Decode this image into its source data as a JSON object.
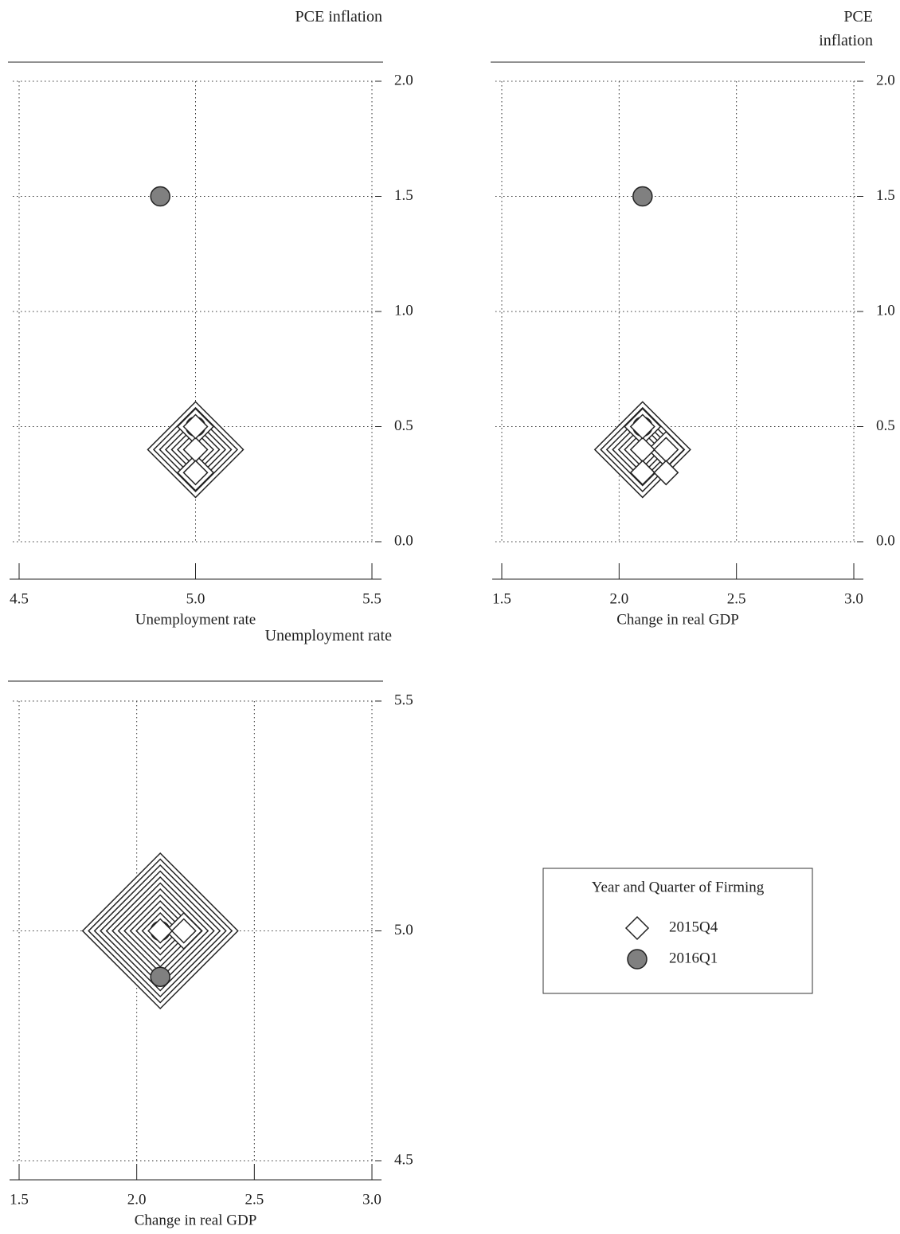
{
  "chart_data": [
    {
      "type": "scatter",
      "x_label": "Unemployment rate",
      "y_label": "PCE inflation",
      "xlim": [
        4.5,
        5.5
      ],
      "xticks": [
        4.5,
        {
          "value": 5,
          "label": "5.0"
        },
        5.5
      ],
      "ylim": [
        0,
        2
      ],
      "yticks": [
        {
          "value": 0,
          "label": "0.0"
        },
        0.5,
        {
          "value": 1,
          "label": "1.0"
        },
        1.5,
        {
          "value": 2,
          "label": "2.0"
        }
      ],
      "grid": true,
      "series": [
        {
          "name": "2015Q4",
          "marker": "diamond",
          "color": "#ffffff",
          "x": [
            5,
            5,
            5,
            5,
            5,
            5,
            5,
            5,
            5,
            5,
            5
          ],
          "y": [
            0.4,
            0.4,
            0.4,
            0.4,
            0.4,
            0.4,
            0.4,
            0.5,
            0.5,
            0.3,
            0.3
          ]
        },
        {
          "name": "2016Q1",
          "marker": "circle",
          "color": "#808080",
          "x": [
            4.9,
            5
          ],
          "y": [
            1.5,
            0.5
          ]
        }
      ]
    },
    {
      "type": "scatter",
      "x_label": "Change in real GDP",
      "y_label": "PCE inflation",
      "xlim": [
        1.5,
        3
      ],
      "xticks": [
        1.5,
        {
          "value": 2,
          "label": "2.0"
        },
        2.5,
        {
          "value": 3,
          "label": "3.0"
        }
      ],
      "ylim": [
        0,
        2
      ],
      "yticks": [
        {
          "value": 0,
          "label": "0.0"
        },
        0.5,
        {
          "value": 1,
          "label": "1.0"
        },
        1.5,
        {
          "value": 2,
          "label": "2.0"
        }
      ],
      "grid": true,
      "series": [
        {
          "name": "2015Q4",
          "marker": "diamond",
          "color": "#ffffff",
          "x": [
            2.1,
            2.1,
            2.1,
            2.1,
            2.1,
            2.1,
            2.1,
            2.1,
            2.1,
            2.2,
            2.2,
            2.1,
            2.2
          ],
          "y": [
            0.4,
            0.4,
            0.4,
            0.4,
            0.4,
            0.4,
            0.4,
            0.5,
            0.5,
            0.4,
            0.4,
            0.3,
            0.3
          ]
        },
        {
          "name": "2016Q1",
          "marker": "circle",
          "color": "#808080",
          "x": [
            2.1,
            2.1
          ],
          "y": [
            1.5,
            0.5
          ]
        }
      ]
    },
    {
      "type": "scatter",
      "x_label": "Change in real GDP",
      "y_label": "Unemployment rate",
      "xlim": [
        1.5,
        3
      ],
      "xticks": [
        1.5,
        {
          "value": 2,
          "label": "2.0"
        },
        2.5,
        {
          "value": 3,
          "label": "3.0"
        }
      ],
      "ylim": [
        4.5,
        5.5
      ],
      "yticks": [
        4.5,
        {
          "value": 5,
          "label": "5.0"
        },
        5.5
      ],
      "grid": true,
      "series": [
        {
          "name": "2015Q4",
          "marker": "diamond",
          "color": "#ffffff",
          "x": [
            2.1,
            2.1,
            2.1,
            2.1,
            2.1,
            2.1,
            2.1,
            2.1,
            2.1,
            2.1,
            2.1,
            2.1,
            2.2,
            2.2
          ],
          "y": [
            5,
            5,
            5,
            5,
            5,
            5,
            5,
            5,
            5,
            5,
            5,
            5,
            5,
            5
          ]
        },
        {
          "name": "2016Q1",
          "marker": "circle",
          "color": "#808080",
          "x": [
            2.1,
            2.1
          ],
          "y": [
            5,
            4.9
          ]
        }
      ]
    }
  ],
  "legend": {
    "title": "Year and Quarter of Firming"
  }
}
